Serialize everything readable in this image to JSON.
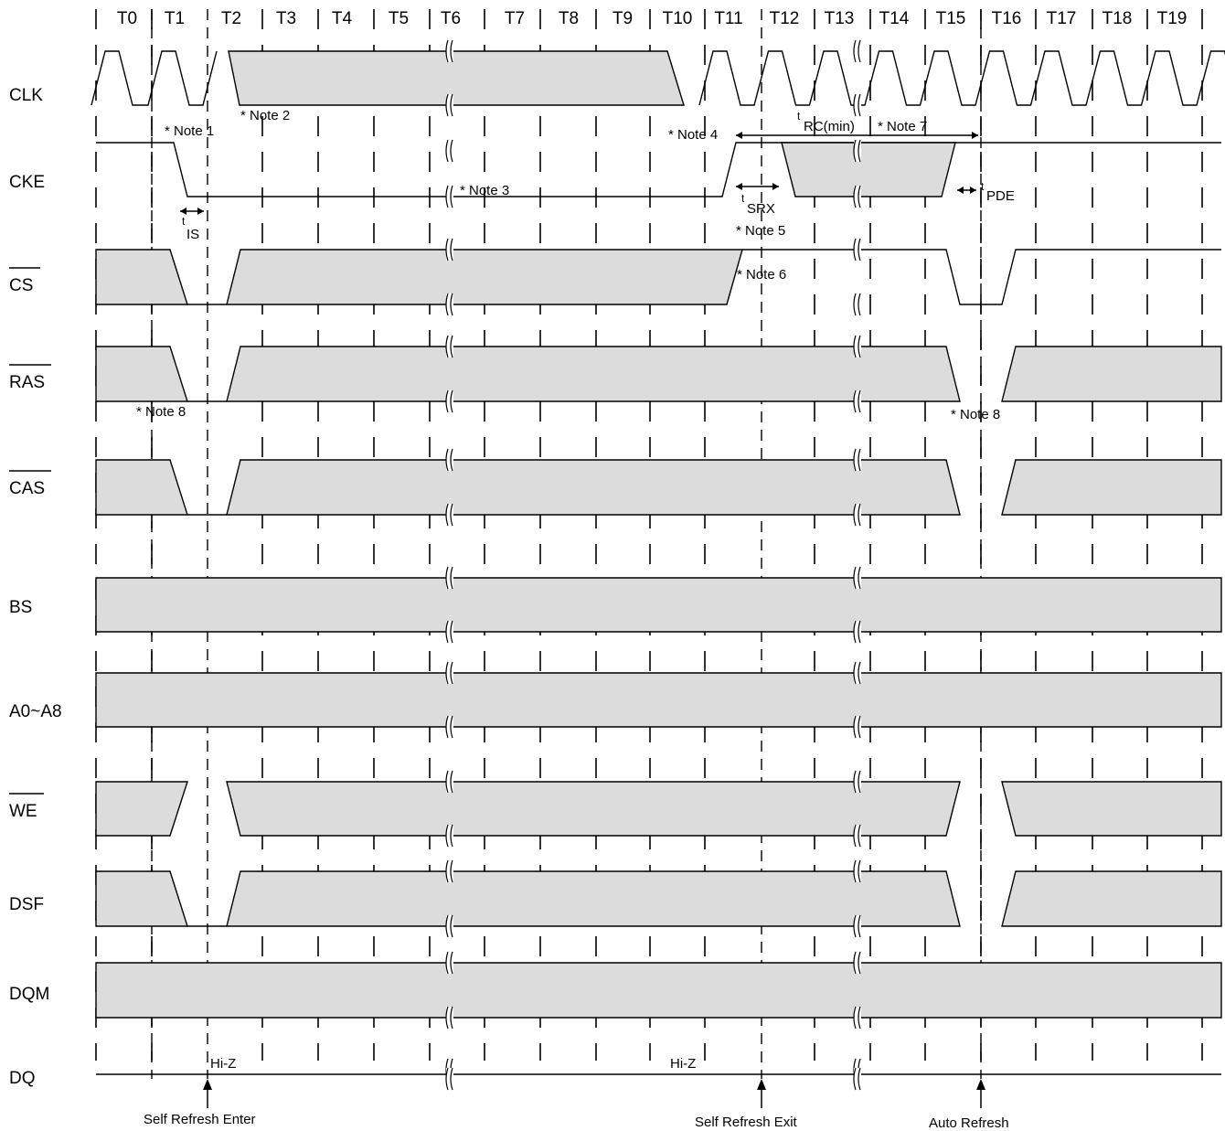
{
  "clock_labels": [
    "T0",
    "T1",
    "T2",
    "T3",
    "T4",
    "T5",
    "T6",
    "T7",
    "T8",
    "T9",
    "T10",
    "T11",
    "T12",
    "T13",
    "T14",
    "T15",
    "T16",
    "T17",
    "T18",
    "T19"
  ],
  "signals": [
    {
      "id": "clk",
      "label": "CLK",
      "overline": false
    },
    {
      "id": "cke",
      "label": "CKE",
      "overline": false
    },
    {
      "id": "cs",
      "label": "CS",
      "overline": true
    },
    {
      "id": "ras",
      "label": "RAS",
      "overline": true
    },
    {
      "id": "cas",
      "label": "CAS",
      "overline": true
    },
    {
      "id": "bs",
      "label": "BS",
      "overline": false
    },
    {
      "id": "addr",
      "label": "A0~A8",
      "overline": false
    },
    {
      "id": "we",
      "label": "WE",
      "overline": true
    },
    {
      "id": "dsf",
      "label": "DSF",
      "overline": false
    },
    {
      "id": "dqm",
      "label": "DQM",
      "overline": false
    },
    {
      "id": "dq",
      "label": "DQ",
      "overline": false
    }
  ],
  "notes": {
    "note1": "* Note 1",
    "note2": "* Note 2",
    "note3": "* Note 3",
    "note4": "* Note 4",
    "note5": "* Note 5",
    "note6": "* Note 6",
    "note7": "* Note 7",
    "note8a": "* Note 8",
    "note8b": "* Note 8"
  },
  "timing": {
    "tis": {
      "t": "t",
      "sub": "IS"
    },
    "tsrx": {
      "t": "t",
      "sub": "SRX"
    },
    "trc": {
      "t": "t",
      "sub": "RC(min)"
    },
    "tpde": {
      "t": "t",
      "sub": "PDE"
    }
  },
  "dq_labels": {
    "hiz1": "Hi-Z",
    "hiz2": "Hi-Z"
  },
  "events": {
    "enter": "Self Refresh Enter",
    "exit": "Self Refresh Exit",
    "auto": "Auto Refresh"
  },
  "colors": {
    "fill": "#dcdcdc",
    "line": "#000000"
  }
}
